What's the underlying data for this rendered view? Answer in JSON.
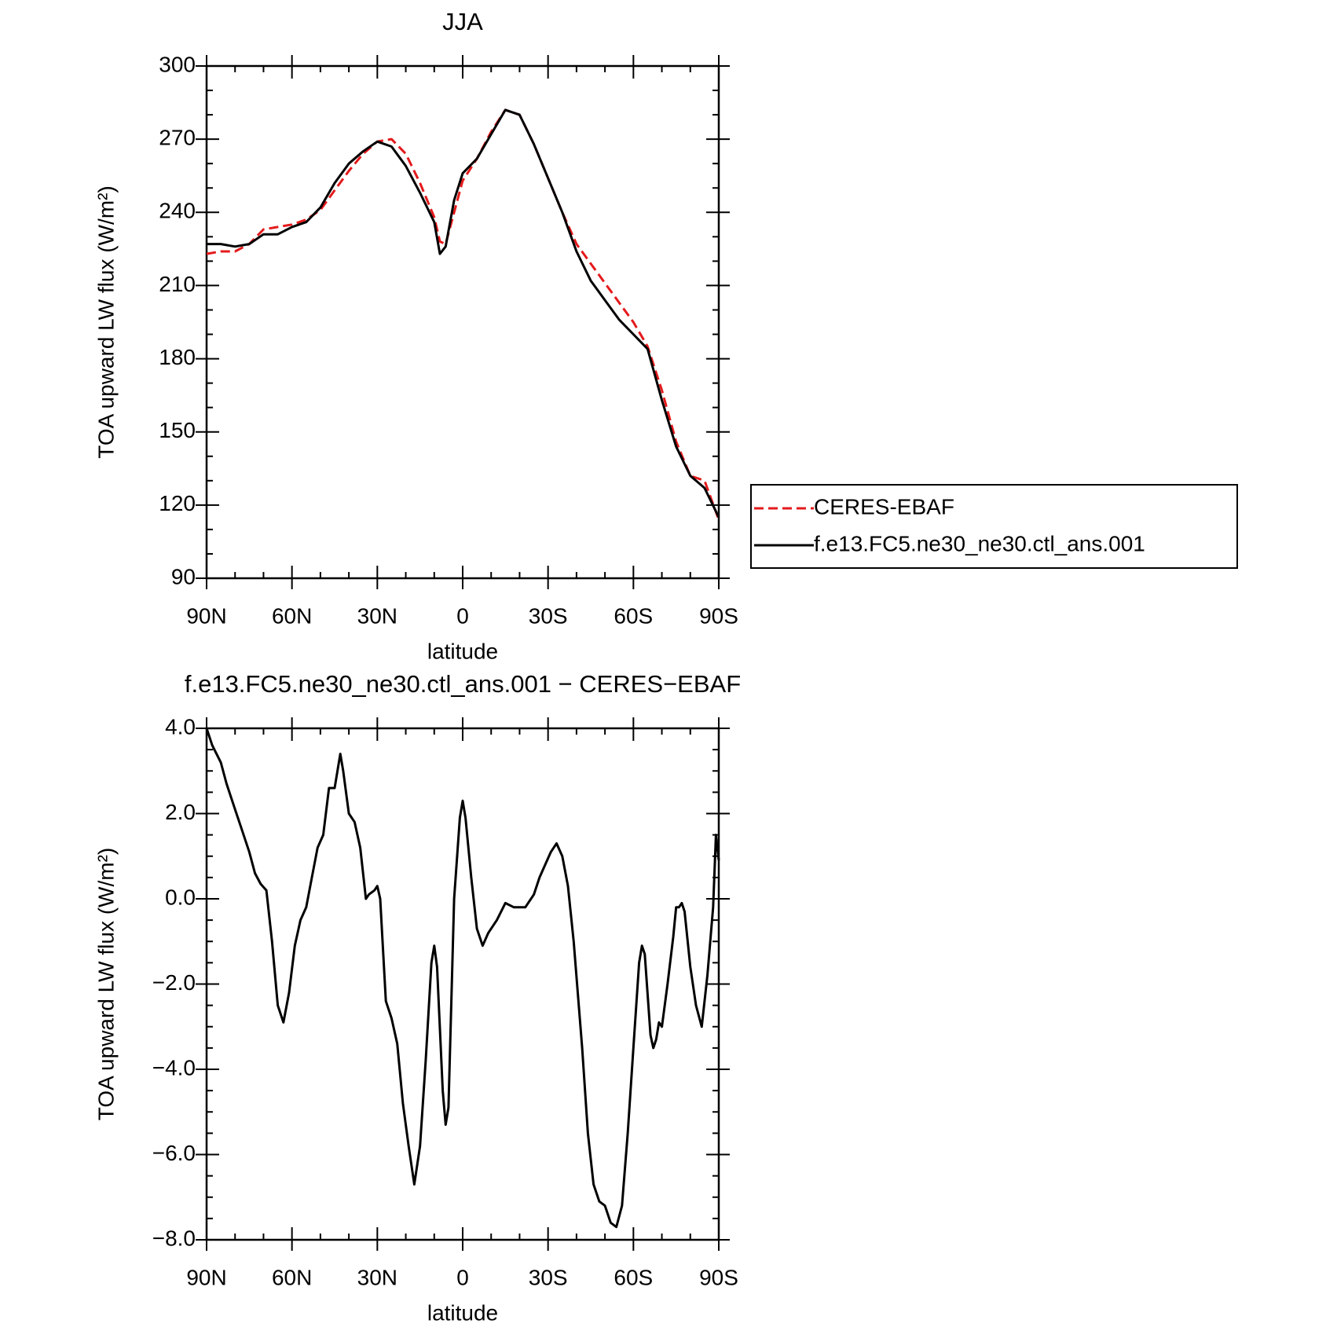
{
  "chart_data": [
    {
      "type": "line",
      "title": "JJA",
      "xlabel": "latitude",
      "ylabel": "TOA upward LW flux (W/m²)",
      "x": [
        90,
        85,
        80,
        75,
        70,
        65,
        60,
        55,
        50,
        45,
        40,
        35,
        30,
        25,
        20,
        15,
        10,
        8,
        6,
        3,
        0,
        -5,
        -10,
        -15,
        -20,
        -25,
        -30,
        -35,
        -40,
        -45,
        -50,
        -55,
        -60,
        -65,
        -70,
        -75,
        -80,
        -85,
        -90
      ],
      "xlim": [
        90,
        -90
      ],
      "xticks": [
        {
          "value": 90,
          "label": "90N"
        },
        {
          "value": 60,
          "label": "60N"
        },
        {
          "value": 30,
          "label": "30N"
        },
        0,
        {
          "value": -30,
          "label": "30S"
        },
        {
          "value": -60,
          "label": "60S"
        },
        {
          "value": -90,
          "label": "90S"
        }
      ],
      "ylim": [
        90,
        300
      ],
      "yticks": [
        90,
        120,
        150,
        180,
        210,
        240,
        270,
        300
      ],
      "legend": "right",
      "series": [
        {
          "name": "CERES-EBAF",
          "color": "#e41a1c",
          "linestyle": "dashed",
          "values": [
            223,
            224,
            224,
            227,
            233,
            234,
            235,
            237,
            241,
            249,
            257,
            264,
            269,
            270,
            264,
            252,
            238,
            228,
            227,
            240,
            253,
            262,
            273,
            282,
            280,
            268,
            254,
            240,
            227,
            219,
            211,
            203,
            195,
            185,
            167,
            146,
            132,
            130,
            114
          ]
        },
        {
          "name": "f.e13.FC5.ne30_ne30.ctl_ans.001",
          "color": "#000000",
          "linestyle": "solid",
          "values": [
            227,
            227,
            226,
            227,
            231,
            231,
            234,
            236,
            242,
            252,
            260,
            265,
            269,
            267,
            259,
            248,
            236,
            223,
            226,
            245,
            256,
            262,
            272,
            282,
            280,
            268,
            254,
            240,
            224,
            212,
            204,
            196,
            190,
            184,
            163,
            144,
            132,
            127,
            115
          ]
        }
      ]
    },
    {
      "type": "line",
      "title": "f.e13.FC5.ne30_ne30.ctl_ans.001 − CERES−EBAF",
      "xlabel": "latitude",
      "ylabel": "TOA upward LW flux (W/m²)",
      "x": [
        90,
        88,
        85,
        83,
        80,
        78,
        75,
        73,
        71,
        69,
        67,
        65,
        63,
        61,
        59,
        57,
        55,
        53,
        51,
        49,
        47,
        45,
        43,
        42,
        40,
        38,
        36,
        34,
        33,
        31,
        30,
        29,
        27,
        25,
        23,
        21,
        19,
        17,
        15,
        13,
        11,
        10,
        9,
        7,
        6,
        5,
        3,
        1,
        0,
        -1,
        -3,
        -5,
        -7,
        -9,
        -12,
        -15,
        -18,
        -20,
        -22,
        -25,
        -27,
        -29,
        -31,
        -33,
        -35,
        -37,
        -39,
        -42,
        -44,
        -46,
        -48,
        -50,
        -52,
        -54,
        -56,
        -58,
        -60,
        -62,
        -63,
        -64,
        -66,
        -67,
        -68,
        -69,
        -70,
        -72,
        -74,
        -75,
        -76,
        -77,
        -78,
        -80,
        -82,
        -84,
        -86,
        -88,
        -89,
        -90
      ],
      "xlim": [
        90,
        -90
      ],
      "xticks": [
        {
          "value": 90,
          "label": "90N"
        },
        {
          "value": 60,
          "label": "60N"
        },
        {
          "value": 30,
          "label": "30N"
        },
        0,
        {
          "value": -30,
          "label": "30S"
        },
        {
          "value": -60,
          "label": "60S"
        },
        {
          "value": -90,
          "label": "90S"
        }
      ],
      "ylim": [
        -8,
        4
      ],
      "yticks": [
        {
          "value": -8,
          "label": "−8.0"
        },
        {
          "value": -6,
          "label": "−6.0"
        },
        {
          "value": -4,
          "label": "−4.0"
        },
        {
          "value": -2,
          "label": "−2.0"
        },
        {
          "value": 0,
          "label": "0.0"
        },
        {
          "value": 2,
          "label": "2.0"
        },
        {
          "value": 4,
          "label": "4.0"
        }
      ],
      "series": [
        {
          "color": "#000000",
          "linestyle": "solid",
          "values": [
            4.0,
            3.6,
            3.2,
            2.7,
            2.1,
            1.7,
            1.1,
            0.6,
            0.35,
            0.2,
            -1.0,
            -2.5,
            -2.9,
            -2.2,
            -1.1,
            -0.5,
            -0.2,
            0.5,
            1.2,
            1.5,
            2.6,
            2.6,
            3.4,
            3.0,
            2.0,
            1.8,
            1.2,
            0.0,
            0.1,
            0.2,
            0.3,
            0.0,
            -2.4,
            -2.8,
            -3.4,
            -4.8,
            -5.8,
            -6.7,
            -5.8,
            -3.8,
            -1.5,
            -1.1,
            -1.6,
            -4.5,
            -5.3,
            -4.9,
            0.0,
            1.9,
            2.3,
            1.9,
            0.5,
            -0.7,
            -1.1,
            -0.8,
            -0.5,
            -0.1,
            -0.2,
            -0.2,
            -0.2,
            0.1,
            0.5,
            0.8,
            1.1,
            1.3,
            1.0,
            0.3,
            -1.0,
            -3.5,
            -5.5,
            -6.7,
            -7.1,
            -7.2,
            -7.6,
            -7.7,
            -7.2,
            -5.5,
            -3.5,
            -1.5,
            -1.1,
            -1.3,
            -3.2,
            -3.5,
            -3.3,
            -2.9,
            -3.0,
            -2.0,
            -0.9,
            -0.2,
            -0.2,
            -0.1,
            -0.3,
            -1.6,
            -2.5,
            -3.0,
            -1.8,
            -0.2,
            1.5,
            0.9
          ]
        }
      ]
    }
  ]
}
